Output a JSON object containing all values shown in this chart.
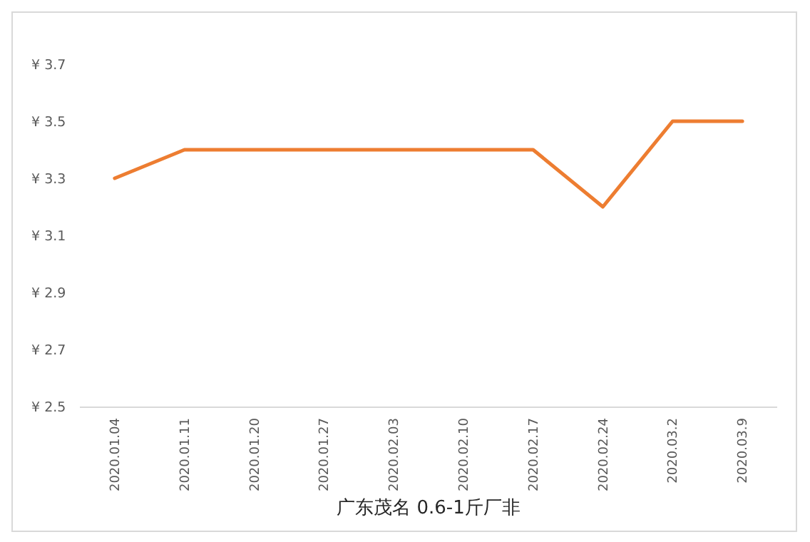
{
  "chart_data": {
    "type": "line",
    "xlabel": "广东茂名 0.6-1斤厂非",
    "categories": [
      "2020.01.04",
      "2020.01.11",
      "2020.01.20",
      "2020.01.27",
      "2020.02.03",
      "2020.02.10",
      "2020.02.17",
      "2020.02.24",
      "2020.03.2",
      "2020.03.9"
    ],
    "series": [
      {
        "color": "#ed7d31",
        "values": [
          3.3,
          3.4,
          3.4,
          3.4,
          3.4,
          3.4,
          3.4,
          3.2,
          3.5,
          3.5
        ]
      }
    ],
    "ylim": [
      2.5,
      3.7
    ],
    "yticks": [
      {
        "value": 2.5,
        "label": "¥ 2.5"
      },
      {
        "value": 2.7,
        "label": "¥ 2.7"
      },
      {
        "value": 2.9,
        "label": "¥ 2.9"
      },
      {
        "value": 3.1,
        "label": "¥ 3.1"
      },
      {
        "value": 3.3,
        "label": "¥ 3.3"
      },
      {
        "value": 3.5,
        "label": "¥ 3.5"
      },
      {
        "value": 3.7,
        "label": "¥ 3.7"
      }
    ],
    "grid": false,
    "marker": "none"
  }
}
